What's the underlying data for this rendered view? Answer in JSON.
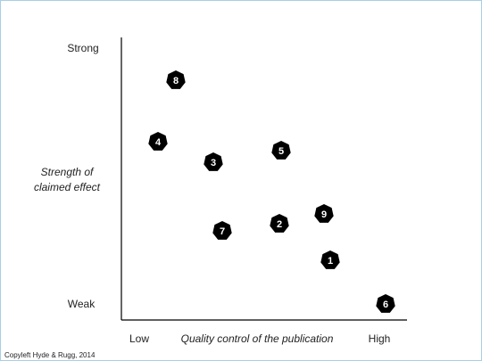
{
  "axes": {
    "y_high": "Strong",
    "y_low": "Weak",
    "y_title_lines": [
      "Strength of",
      "claimed effect"
    ],
    "x_low": "Low",
    "x_title": "Quality control of the publication",
    "x_high": "High"
  },
  "markers": [
    {
      "label": "8"
    },
    {
      "label": "4"
    },
    {
      "label": "3"
    },
    {
      "label": "5"
    },
    {
      "label": "9"
    },
    {
      "label": "2"
    },
    {
      "label": "7"
    },
    {
      "label": "1"
    },
    {
      "label": "6"
    }
  ],
  "credit": "Copyleft Hyde & Rugg, 2014"
}
